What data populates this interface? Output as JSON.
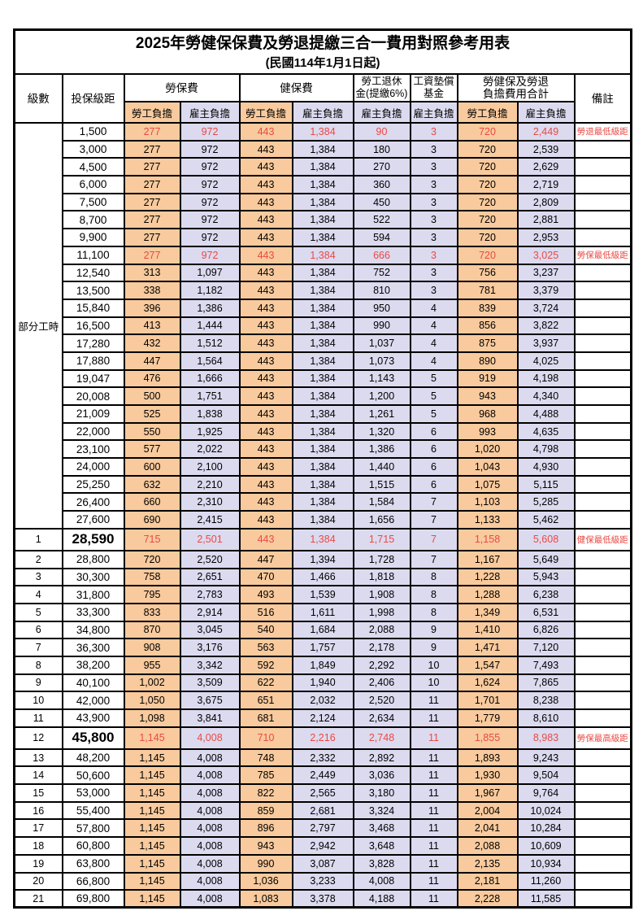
{
  "title": "2025年勞健保保費及勞退提繳三合一費用對照參考用表",
  "subtitle": "(民國114年1月1日起)",
  "header": {
    "level": "級數",
    "bracket": "投保級距",
    "labor_ins": "勞保費",
    "health_ins": "健保費",
    "pension_line1": "勞工退休",
    "pension_line2": "金(提繳6%)",
    "wage_fund_line1": "工資墊償",
    "wage_fund_line2": "基金",
    "total_line1": "勞健保及勞退",
    "total_line2": "負擔費用合計",
    "remark": "備註",
    "employee": "勞工負擔",
    "employer": "雇主負擔"
  },
  "group": {
    "label": "部分工時",
    "span": 23
  },
  "colors": {
    "employee_bg": "#F8CA9D",
    "employer_bg": "#DCDAEF",
    "highlight_text": "#E94A44",
    "border": "#000000"
  },
  "rows": [
    {
      "level": "",
      "bracket": "1,500",
      "v": [
        "277",
        "972",
        "443",
        "1,384",
        "90",
        "3",
        "720",
        "2,449"
      ],
      "remark": "勞退最低級距",
      "red": true
    },
    {
      "level": "",
      "bracket": "3,000",
      "v": [
        "277",
        "972",
        "443",
        "1,384",
        "180",
        "3",
        "720",
        "2,539"
      ],
      "remark": ""
    },
    {
      "level": "",
      "bracket": "4,500",
      "v": [
        "277",
        "972",
        "443",
        "1,384",
        "270",
        "3",
        "720",
        "2,629"
      ],
      "remark": ""
    },
    {
      "level": "",
      "bracket": "6,000",
      "v": [
        "277",
        "972",
        "443",
        "1,384",
        "360",
        "3",
        "720",
        "2,719"
      ],
      "remark": ""
    },
    {
      "level": "",
      "bracket": "7,500",
      "v": [
        "277",
        "972",
        "443",
        "1,384",
        "450",
        "3",
        "720",
        "2,809"
      ],
      "remark": ""
    },
    {
      "level": "",
      "bracket": "8,700",
      "v": [
        "277",
        "972",
        "443",
        "1,384",
        "522",
        "3",
        "720",
        "2,881"
      ],
      "remark": ""
    },
    {
      "level": "",
      "bracket": "9,900",
      "v": [
        "277",
        "972",
        "443",
        "1,384",
        "594",
        "3",
        "720",
        "2,953"
      ],
      "remark": ""
    },
    {
      "level": "",
      "bracket": "11,100",
      "v": [
        "277",
        "972",
        "443",
        "1,384",
        "666",
        "3",
        "720",
        "3,025"
      ],
      "remark": "勞保最低級距",
      "red": true
    },
    {
      "level": "",
      "bracket": "12,540",
      "v": [
        "313",
        "1,097",
        "443",
        "1,384",
        "752",
        "3",
        "756",
        "3,237"
      ],
      "remark": ""
    },
    {
      "level": "",
      "bracket": "13,500",
      "v": [
        "338",
        "1,182",
        "443",
        "1,384",
        "810",
        "3",
        "781",
        "3,379"
      ],
      "remark": ""
    },
    {
      "level": "",
      "bracket": "15,840",
      "v": [
        "396",
        "1,386",
        "443",
        "1,384",
        "950",
        "4",
        "839",
        "3,724"
      ],
      "remark": ""
    },
    {
      "level": "",
      "bracket": "16,500",
      "v": [
        "413",
        "1,444",
        "443",
        "1,384",
        "990",
        "4",
        "856",
        "3,822"
      ],
      "remark": ""
    },
    {
      "level": "",
      "bracket": "17,280",
      "v": [
        "432",
        "1,512",
        "443",
        "1,384",
        "1,037",
        "4",
        "875",
        "3,937"
      ],
      "remark": ""
    },
    {
      "level": "",
      "bracket": "17,880",
      "v": [
        "447",
        "1,564",
        "443",
        "1,384",
        "1,073",
        "4",
        "890",
        "4,025"
      ],
      "remark": ""
    },
    {
      "level": "",
      "bracket": "19,047",
      "v": [
        "476",
        "1,666",
        "443",
        "1,384",
        "1,143",
        "5",
        "919",
        "4,198"
      ],
      "remark": ""
    },
    {
      "level": "",
      "bracket": "20,008",
      "v": [
        "500",
        "1,751",
        "443",
        "1,384",
        "1,200",
        "5",
        "943",
        "4,340"
      ],
      "remark": ""
    },
    {
      "level": "",
      "bracket": "21,009",
      "v": [
        "525",
        "1,838",
        "443",
        "1,384",
        "1,261",
        "5",
        "968",
        "4,488"
      ],
      "remark": ""
    },
    {
      "level": "",
      "bracket": "22,000",
      "v": [
        "550",
        "1,925",
        "443",
        "1,384",
        "1,320",
        "6",
        "993",
        "4,635"
      ],
      "remark": ""
    },
    {
      "level": "",
      "bracket": "23,100",
      "v": [
        "577",
        "2,022",
        "443",
        "1,384",
        "1,386",
        "6",
        "1,020",
        "4,798"
      ],
      "remark": ""
    },
    {
      "level": "",
      "bracket": "24,000",
      "v": [
        "600",
        "2,100",
        "443",
        "1,384",
        "1,440",
        "6",
        "1,043",
        "4,930"
      ],
      "remark": ""
    },
    {
      "level": "",
      "bracket": "25,250",
      "v": [
        "632",
        "2,210",
        "443",
        "1,384",
        "1,515",
        "6",
        "1,075",
        "5,115"
      ],
      "remark": ""
    },
    {
      "level": "",
      "bracket": "26,400",
      "v": [
        "660",
        "2,310",
        "443",
        "1,384",
        "1,584",
        "7",
        "1,103",
        "5,285"
      ],
      "remark": ""
    },
    {
      "level": "",
      "bracket": "27,600",
      "v": [
        "690",
        "2,415",
        "443",
        "1,384",
        "1,656",
        "7",
        "1,133",
        "5,462"
      ],
      "remark": ""
    },
    {
      "level": "1",
      "bracket": "28,590",
      "v": [
        "715",
        "2,501",
        "443",
        "1,384",
        "1,715",
        "7",
        "1,158",
        "5,608"
      ],
      "remark": "健保最低級距",
      "red": true,
      "special": true
    },
    {
      "level": "2",
      "bracket": "28,800",
      "v": [
        "720",
        "2,520",
        "447",
        "1,394",
        "1,728",
        "7",
        "1,167",
        "5,649"
      ],
      "remark": ""
    },
    {
      "level": "3",
      "bracket": "30,300",
      "v": [
        "758",
        "2,651",
        "470",
        "1,466",
        "1,818",
        "8",
        "1,228",
        "5,943"
      ],
      "remark": ""
    },
    {
      "level": "4",
      "bracket": "31,800",
      "v": [
        "795",
        "2,783",
        "493",
        "1,539",
        "1,908",
        "8",
        "1,288",
        "6,238"
      ],
      "remark": ""
    },
    {
      "level": "5",
      "bracket": "33,300",
      "v": [
        "833",
        "2,914",
        "516",
        "1,611",
        "1,998",
        "8",
        "1,349",
        "6,531"
      ],
      "remark": ""
    },
    {
      "level": "6",
      "bracket": "34,800",
      "v": [
        "870",
        "3,045",
        "540",
        "1,684",
        "2,088",
        "9",
        "1,410",
        "6,826"
      ],
      "remark": ""
    },
    {
      "level": "7",
      "bracket": "36,300",
      "v": [
        "908",
        "3,176",
        "563",
        "1,757",
        "2,178",
        "9",
        "1,471",
        "7,120"
      ],
      "remark": ""
    },
    {
      "level": "8",
      "bracket": "38,200",
      "v": [
        "955",
        "3,342",
        "592",
        "1,849",
        "2,292",
        "10",
        "1,547",
        "7,493"
      ],
      "remark": ""
    },
    {
      "level": "9",
      "bracket": "40,100",
      "v": [
        "1,002",
        "3,509",
        "622",
        "1,940",
        "2,406",
        "10",
        "1,624",
        "7,865"
      ],
      "remark": ""
    },
    {
      "level": "10",
      "bracket": "42,000",
      "v": [
        "1,050",
        "3,675",
        "651",
        "2,032",
        "2,520",
        "11",
        "1,701",
        "8,238"
      ],
      "remark": ""
    },
    {
      "level": "11",
      "bracket": "43,900",
      "v": [
        "1,098",
        "3,841",
        "681",
        "2,124",
        "2,634",
        "11",
        "1,779",
        "8,610"
      ],
      "remark": ""
    },
    {
      "level": "12",
      "bracket": "45,800",
      "v": [
        "1,145",
        "4,008",
        "710",
        "2,216",
        "2,748",
        "11",
        "1,855",
        "8,983"
      ],
      "remark": "勞保最高級距",
      "red": true,
      "special": true
    },
    {
      "level": "13",
      "bracket": "48,200",
      "v": [
        "1,145",
        "4,008",
        "748",
        "2,332",
        "2,892",
        "11",
        "1,893",
        "9,243"
      ],
      "remark": ""
    },
    {
      "level": "14",
      "bracket": "50,600",
      "v": [
        "1,145",
        "4,008",
        "785",
        "2,449",
        "3,036",
        "11",
        "1,930",
        "9,504"
      ],
      "remark": ""
    },
    {
      "level": "15",
      "bracket": "53,000",
      "v": [
        "1,145",
        "4,008",
        "822",
        "2,565",
        "3,180",
        "11",
        "1,967",
        "9,764"
      ],
      "remark": ""
    },
    {
      "level": "16",
      "bracket": "55,400",
      "v": [
        "1,145",
        "4,008",
        "859",
        "2,681",
        "3,324",
        "11",
        "2,004",
        "10,024"
      ],
      "remark": ""
    },
    {
      "level": "17",
      "bracket": "57,800",
      "v": [
        "1,145",
        "4,008",
        "896",
        "2,797",
        "3,468",
        "11",
        "2,041",
        "10,284"
      ],
      "remark": ""
    },
    {
      "level": "18",
      "bracket": "60,800",
      "v": [
        "1,145",
        "4,008",
        "943",
        "2,942",
        "3,648",
        "11",
        "2,088",
        "10,609"
      ],
      "remark": ""
    },
    {
      "level": "19",
      "bracket": "63,800",
      "v": [
        "1,145",
        "4,008",
        "990",
        "3,087",
        "3,828",
        "11",
        "2,135",
        "10,934"
      ],
      "remark": ""
    },
    {
      "level": "20",
      "bracket": "66,800",
      "v": [
        "1,145",
        "4,008",
        "1,036",
        "3,233",
        "4,008",
        "11",
        "2,181",
        "11,260"
      ],
      "remark": ""
    },
    {
      "level": "21",
      "bracket": "69,800",
      "v": [
        "1,145",
        "4,008",
        "1,083",
        "3,378",
        "4,188",
        "11",
        "2,228",
        "11,585"
      ],
      "remark": ""
    }
  ]
}
